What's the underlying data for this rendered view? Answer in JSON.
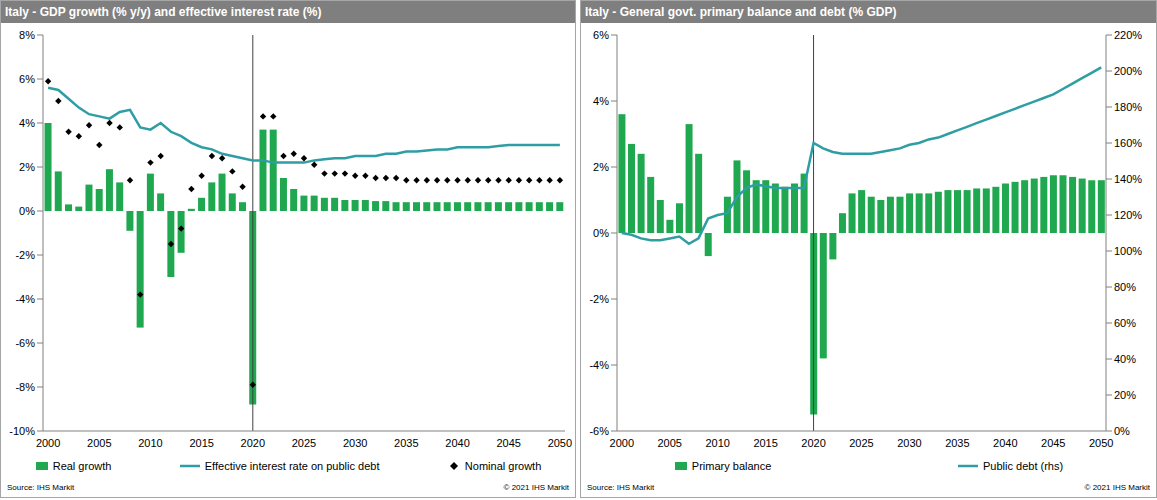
{
  "chart_data": [
    {
      "type": "bar",
      "title": "Italy - GDP growth (% y/y) and effective interest rate (%)",
      "source": "Source: IHS Markit",
      "copyright": "© 2021 IHS Markit",
      "grid": false,
      "reference_line": "2020",
      "categories": [
        "2000",
        null,
        null,
        null,
        null,
        "2005",
        null,
        null,
        null,
        null,
        "2010",
        null,
        null,
        null,
        null,
        "2015",
        null,
        null,
        null,
        null,
        "2020",
        null,
        null,
        null,
        null,
        "2025",
        null,
        null,
        null,
        null,
        "2030",
        null,
        null,
        null,
        null,
        "2035",
        null,
        null,
        null,
        null,
        "2040",
        null,
        null,
        null,
        null,
        "2045",
        null,
        null,
        null,
        null,
        "2050"
      ],
      "ylim": [
        -10,
        8
      ],
      "yticks": [
        {
          "value": -10,
          "label": "-10%"
        },
        {
          "value": -8,
          "label": "-8%"
        },
        {
          "value": -6,
          "label": "-6%"
        },
        {
          "value": -4,
          "label": "-4%"
        },
        {
          "value": -2,
          "label": "-2%"
        },
        {
          "value": 0,
          "label": "0%"
        },
        {
          "value": 2,
          "label": "2%"
        },
        {
          "value": 4,
          "label": "4%"
        },
        {
          "value": 6,
          "label": "6%"
        },
        {
          "value": 8,
          "label": "8%"
        }
      ],
      "series": [
        {
          "name": "Real growth",
          "type": "bar",
          "color": "#1fa84f",
          "values": [
            4.0,
            1.8,
            0.3,
            0.2,
            1.2,
            1.0,
            1.9,
            1.3,
            -0.9,
            -5.3,
            1.7,
            0.8,
            -3.0,
            -1.9,
            0.1,
            0.6,
            1.3,
            1.7,
            0.8,
            0.4,
            -8.8,
            3.7,
            3.7,
            1.5,
            1.0,
            0.7,
            0.7,
            0.6,
            0.6,
            0.5,
            0.5,
            0.5,
            0.45,
            0.45,
            0.4,
            0.4,
            0.4,
            0.4,
            0.4,
            0.4,
            0.4,
            0.4,
            0.4,
            0.4,
            0.4,
            0.4,
            0.4,
            0.4,
            0.4,
            0.4,
            0.4
          ]
        },
        {
          "name": "Effective interest rate on public debt",
          "type": "line",
          "color": "#2f9ea4",
          "marker": "none",
          "values": [
            5.6,
            5.5,
            5.1,
            4.7,
            4.4,
            4.3,
            4.2,
            4.5,
            4.6,
            3.8,
            3.7,
            4.0,
            3.6,
            3.4,
            3.1,
            2.9,
            2.8,
            2.6,
            2.5,
            2.4,
            2.3,
            2.3,
            2.2,
            2.2,
            2.2,
            2.2,
            2.3,
            2.35,
            2.4,
            2.4,
            2.5,
            2.5,
            2.5,
            2.6,
            2.6,
            2.7,
            2.7,
            2.75,
            2.8,
            2.8,
            2.9,
            2.9,
            2.9,
            2.9,
            2.95,
            3.0,
            3.0,
            3.0,
            3.0,
            3.0,
            3.0
          ]
        },
        {
          "name": "Nominal growth",
          "type": "scatter",
          "color": "#000000",
          "marker": "diamond",
          "values": [
            5.9,
            5.0,
            3.6,
            3.4,
            3.9,
            3.0,
            4.0,
            3.8,
            1.4,
            -3.8,
            2.2,
            2.5,
            -1.5,
            -0.8,
            1.0,
            1.6,
            2.5,
            2.4,
            1.8,
            1.1,
            -7.9,
            4.3,
            4.3,
            2.5,
            2.6,
            2.4,
            2.1,
            1.7,
            1.7,
            1.7,
            1.6,
            1.6,
            1.5,
            1.5,
            1.5,
            1.4,
            1.4,
            1.4,
            1.4,
            1.4,
            1.4,
            1.4,
            1.4,
            1.4,
            1.4,
            1.4,
            1.4,
            1.4,
            1.4,
            1.4,
            1.4
          ]
        }
      ]
    },
    {
      "type": "bar",
      "title": "Italy - General govt. primary balance and debt (% GDP)",
      "source": "Source: IHS Markit",
      "copyright": "© 2021 IHS Markit",
      "grid": false,
      "reference_line": "2020",
      "categories": [
        "2000",
        null,
        null,
        null,
        null,
        "2005",
        null,
        null,
        null,
        null,
        "2010",
        null,
        null,
        null,
        null,
        "2015",
        null,
        null,
        null,
        null,
        "2020",
        null,
        null,
        null,
        null,
        "2025",
        null,
        null,
        null,
        null,
        "2030",
        null,
        null,
        null,
        null,
        "2035",
        null,
        null,
        null,
        null,
        "2040",
        null,
        null,
        null,
        null,
        "2045",
        null,
        null,
        null,
        null,
        "2050"
      ],
      "ylim": [
        -6,
        6
      ],
      "yticks": [
        {
          "value": -6,
          "label": "-6%"
        },
        {
          "value": -4,
          "label": "-4%"
        },
        {
          "value": -2,
          "label": "-2%"
        },
        {
          "value": 0,
          "label": "0%"
        },
        {
          "value": 2,
          "label": "2%"
        },
        {
          "value": 4,
          "label": "4%"
        },
        {
          "value": 6,
          "label": "6%"
        }
      ],
      "y2lim": [
        0,
        220
      ],
      "y2ticks": [
        {
          "value": 0,
          "label": "0%"
        },
        {
          "value": 20,
          "label": "20%"
        },
        {
          "value": 40,
          "label": "40%"
        },
        {
          "value": 60,
          "label": "60%"
        },
        {
          "value": 80,
          "label": "80%"
        },
        {
          "value": 100,
          "label": "100%"
        },
        {
          "value": 120,
          "label": "120%"
        },
        {
          "value": 140,
          "label": "140%"
        },
        {
          "value": 160,
          "label": "160%"
        },
        {
          "value": 180,
          "label": "180%"
        },
        {
          "value": 200,
          "label": "200%"
        },
        {
          "value": 220,
          "label": "220%"
        }
      ],
      "series": [
        {
          "name": "Primary balance",
          "type": "bar",
          "color": "#1fa84f",
          "values": [
            3.6,
            2.7,
            2.4,
            1.7,
            1.0,
            0.4,
            0.9,
            3.3,
            2.4,
            -0.7,
            0.0,
            1.1,
            2.2,
            1.9,
            1.6,
            1.6,
            1.5,
            1.4,
            1.5,
            1.8,
            -5.5,
            -3.8,
            -0.8,
            0.6,
            1.2,
            1.3,
            1.1,
            1.0,
            1.1,
            1.1,
            1.2,
            1.2,
            1.2,
            1.25,
            1.3,
            1.3,
            1.3,
            1.35,
            1.35,
            1.4,
            1.5,
            1.55,
            1.6,
            1.65,
            1.7,
            1.75,
            1.75,
            1.7,
            1.65,
            1.6,
            1.6
          ]
        },
        {
          "name": "Public debt (rhs)",
          "type": "line",
          "axis": "y2",
          "color": "#2f9ea4",
          "marker": "none",
          "values": [
            110,
            109,
            107,
            106,
            106,
            107,
            108,
            104,
            107,
            118,
            120,
            121,
            130,
            135,
            137,
            136,
            135,
            135,
            135,
            135,
            160,
            157,
            155,
            154,
            154,
            154,
            154,
            155,
            156,
            157,
            159,
            160,
            162,
            163,
            165,
            167,
            169,
            171,
            173,
            175,
            177,
            179,
            181,
            183,
            185,
            187,
            190,
            193,
            196,
            199,
            202
          ]
        }
      ]
    }
  ]
}
